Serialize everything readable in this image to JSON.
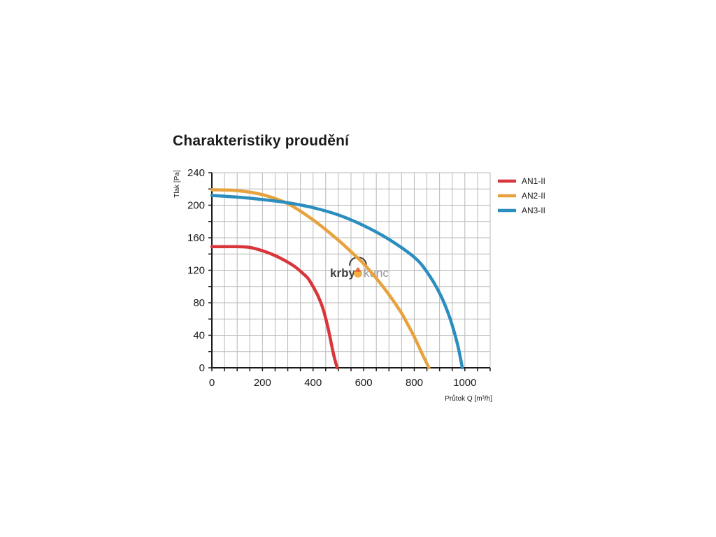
{
  "watermark": {
    "text_left": "krby",
    "text_right": "kunc"
  },
  "chart_data": {
    "type": "line",
    "title": "Charakteristiky proudění",
    "xlabel": "Průtok Q [m³/h]",
    "ylabel": "Tlak [Pa]",
    "xlim": [
      0,
      1100
    ],
    "ylim": [
      0,
      240
    ],
    "x_ticks": [
      0,
      200,
      400,
      600,
      800,
      1000
    ],
    "y_ticks": [
      0,
      40,
      80,
      120,
      160,
      200,
      240
    ],
    "grid": true,
    "legend_position": "right",
    "series": [
      {
        "name": "AN1-II",
        "color": "#d9363b",
        "points": [
          [
            0,
            149
          ],
          [
            50,
            149
          ],
          [
            100,
            149
          ],
          [
            150,
            148
          ],
          [
            200,
            144
          ],
          [
            250,
            138
          ],
          [
            300,
            130
          ],
          [
            330,
            124
          ],
          [
            360,
            116
          ],
          [
            380,
            110
          ],
          [
            400,
            100
          ],
          [
            420,
            88
          ],
          [
            440,
            72
          ],
          [
            460,
            48
          ],
          [
            480,
            18
          ],
          [
            495,
            0
          ]
        ]
      },
      {
        "name": "AN2-II",
        "color": "#e8a23d",
        "points": [
          [
            0,
            219
          ],
          [
            100,
            218
          ],
          [
            200,
            213
          ],
          [
            300,
            202
          ],
          [
            400,
            182
          ],
          [
            500,
            157
          ],
          [
            580,
            134
          ],
          [
            600,
            128
          ],
          [
            650,
            110
          ],
          [
            700,
            90
          ],
          [
            750,
            67
          ],
          [
            800,
            38
          ],
          [
            830,
            18
          ],
          [
            858,
            0
          ]
        ]
      },
      {
        "name": "AN3-II",
        "color": "#2b8ebf",
        "points": [
          [
            0,
            212
          ],
          [
            100,
            210
          ],
          [
            200,
            207
          ],
          [
            300,
            203
          ],
          [
            400,
            197
          ],
          [
            500,
            188
          ],
          [
            600,
            175
          ],
          [
            700,
            158
          ],
          [
            800,
            136
          ],
          [
            850,
            118
          ],
          [
            900,
            92
          ],
          [
            940,
            62
          ],
          [
            970,
            30
          ],
          [
            990,
            0
          ]
        ]
      }
    ]
  }
}
